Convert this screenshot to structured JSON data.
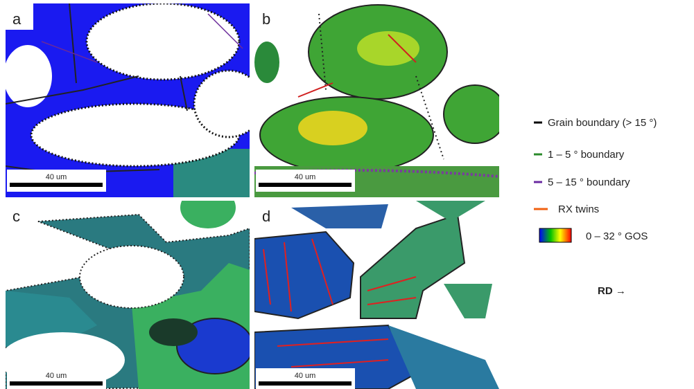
{
  "panels": [
    {
      "label": "a",
      "scale_bar": "40 um"
    },
    {
      "label": "b",
      "scale_bar": "40 um"
    },
    {
      "label": "c",
      "scale_bar": "40 um"
    },
    {
      "label": "d",
      "scale_bar": "40 um"
    }
  ],
  "legend": {
    "items": [
      {
        "label": "Grain boundary (> 15 °)"
      },
      {
        "label": "1 – 5 ° boundary"
      },
      {
        "label": "5 – 15 ° boundary"
      },
      {
        "label": "RX twins"
      },
      {
        "label": "0 – 32 ° GOS"
      }
    ]
  },
  "direction": "RD →"
}
